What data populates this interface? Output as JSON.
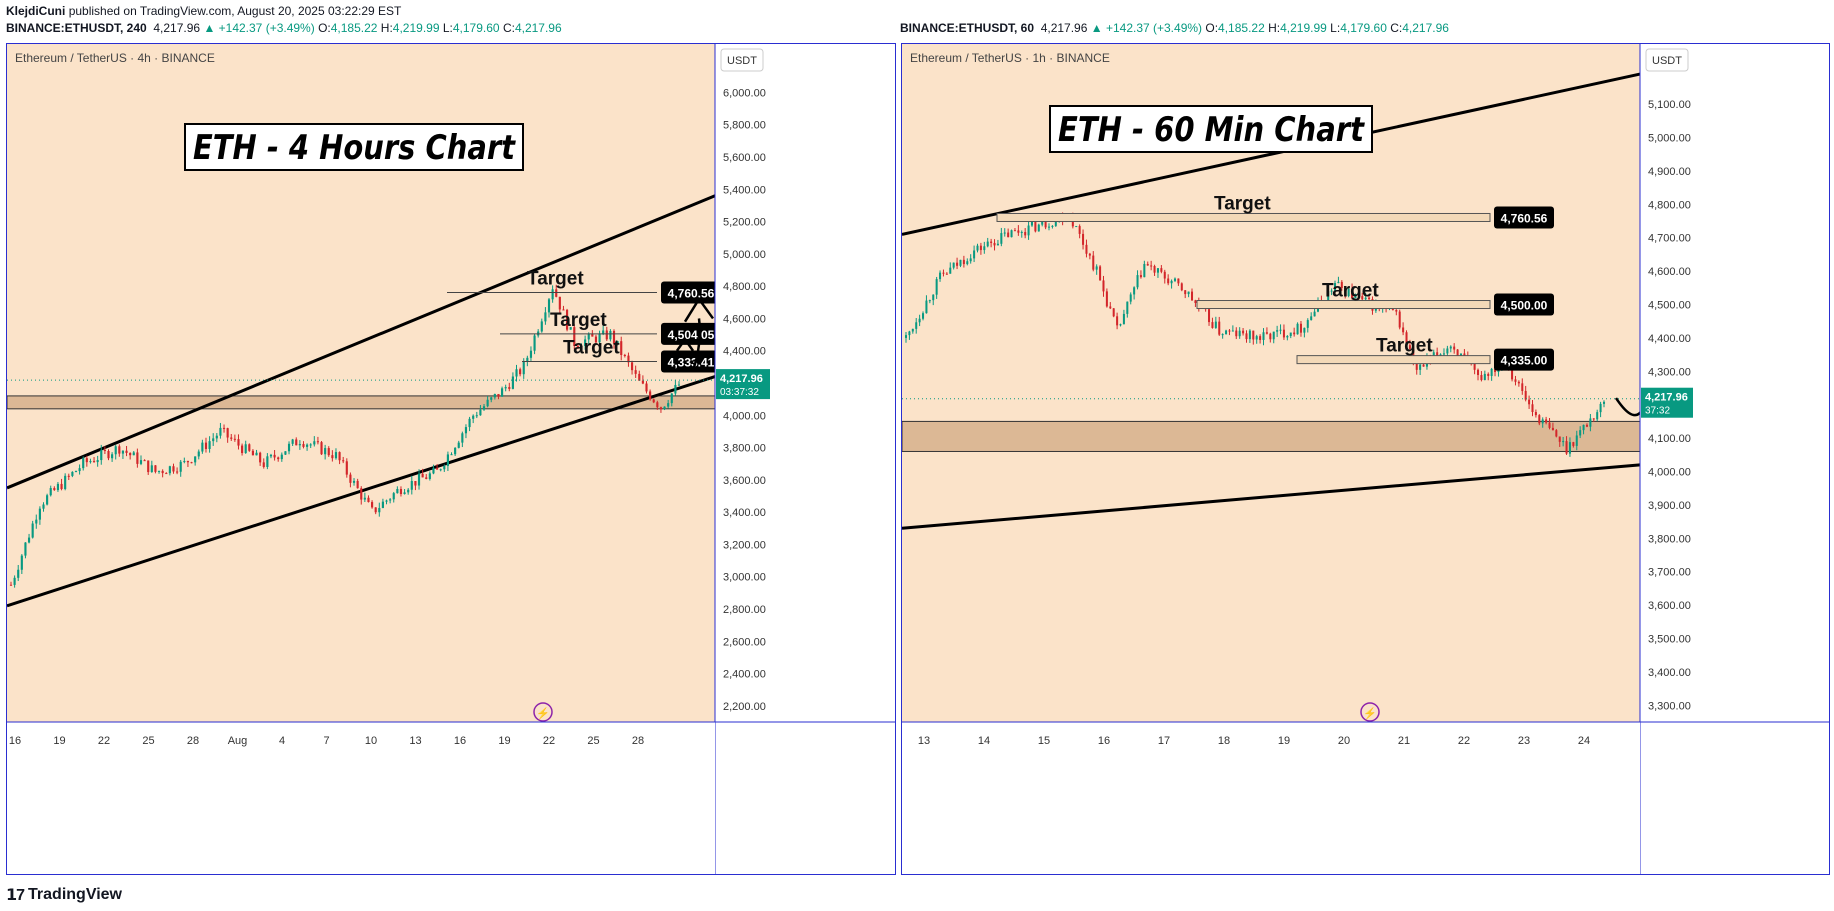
{
  "header": {
    "author": "KlejdiCuni",
    "published": "published on TradingView.com, August 20, 2025 03:22:29 EST"
  },
  "footer": {
    "brand": "TradingView"
  },
  "left_ohlc": {
    "symbol": "BINANCE:ETHUSDT, 240",
    "last": "4,217.96",
    "change": "▲ +142.37 (+3.49%)",
    "o": "4,185.22",
    "h": "4,219.99",
    "l": "4,179.60",
    "c": "4,217.96"
  },
  "right_ohlc": {
    "symbol": "BINANCE:ETHUSDT, 60",
    "last": "4,217.96",
    "change": "▲ +142.37 (+3.49%)",
    "o": "4,185.22",
    "h": "4,219.99",
    "l": "4,179.60",
    "c": "4,217.96"
  },
  "colors": {
    "background": "#fbe3c9",
    "zone": "#dcb895",
    "up": "#089981",
    "down": "#d3262a",
    "frame": "#2a2ed1"
  },
  "chart_data": [
    {
      "type": "candlestick",
      "pane_label": "Ethereum / TetherUS · 4h · BINANCE",
      "title": "ETH - 4 Hours Chart",
      "currency": "USDT",
      "ylim": [
        2100,
        6300
      ],
      "y_ticks": [
        "6,200.00",
        "6,000.00",
        "5,800.00",
        "5,600.00",
        "5,400.00",
        "5,200.00",
        "5,000.00",
        "4,800.00",
        "4,600.00",
        "4,400.00",
        "4,200.00",
        "4,000.00",
        "3,800.00",
        "3,600.00",
        "3,400.00",
        "3,200.00",
        "3,000.00",
        "2,800.00",
        "2,600.00",
        "2,400.00",
        "2,200.00"
      ],
      "x_ticks": [
        "16",
        "19",
        "22",
        "25",
        "28",
        "Aug",
        "4",
        "7",
        "10",
        "13",
        "16",
        "19",
        "22",
        "25",
        "28"
      ],
      "price_path": [
        [
          0,
          2950
        ],
        [
          8,
          3450
        ],
        [
          20,
          3700
        ],
        [
          30,
          3800
        ],
        [
          40,
          3650
        ],
        [
          48,
          3700
        ],
        [
          58,
          3900
        ],
        [
          70,
          3700
        ],
        [
          80,
          3850
        ],
        [
          90,
          3750
        ],
        [
          100,
          3400
        ],
        [
          108,
          3550
        ],
        [
          118,
          3650
        ],
        [
          128,
          4000
        ],
        [
          136,
          4150
        ],
        [
          142,
          4300
        ],
        [
          150,
          4800
        ],
        [
          156,
          4450
        ],
        [
          166,
          4500
        ],
        [
          174,
          4200
        ],
        [
          180,
          4050
        ],
        [
          186,
          4217.96
        ]
      ],
      "support_zone": [
        4040,
        4120
      ],
      "channel_upper": [
        [
          0,
          3550
        ],
        [
          220,
          5360
        ]
      ],
      "channel_lower": [
        [
          0,
          2820
        ],
        [
          238,
          4240
        ]
      ],
      "targets": [
        {
          "label": "Target",
          "value": "4,760.56",
          "price": 4760.56
        },
        {
          "label": "Target",
          "value": "4,504.05",
          "price": 4504.05
        },
        {
          "label": "Target",
          "value": "4,333.41",
          "price": 4333.41
        }
      ],
      "last_price": "4,217.96",
      "countdown": "03:37:32"
    },
    {
      "type": "candlestick",
      "pane_label": "Ethereum / TetherUS · 1h · BINANCE",
      "title": "ETH - 60 Min Chart",
      "currency": "USDT",
      "ylim": [
        3250,
        5280
      ],
      "y_ticks": [
        "5,200.00",
        "5,100.00",
        "5,000.00",
        "4,900.00",
        "4,800.00",
        "4,700.00",
        "4,600.00",
        "4,500.00",
        "4,400.00",
        "4,300.00",
        "4,200.00",
        "4,100.00",
        "4,000.00",
        "3,900.00",
        "3,800.00",
        "3,700.00",
        "3,600.00",
        "3,500.00",
        "3,400.00",
        "3,300.00"
      ],
      "x_ticks": [
        "13",
        "14",
        "15",
        "16",
        "17",
        "18",
        "19",
        "20",
        "21",
        "22",
        "23",
        "24"
      ],
      "price_path": [
        [
          0,
          4400
        ],
        [
          10,
          4580
        ],
        [
          20,
          4660
        ],
        [
          30,
          4710
        ],
        [
          40,
          4740
        ],
        [
          48,
          4770
        ],
        [
          56,
          4600
        ],
        [
          62,
          4420
        ],
        [
          70,
          4620
        ],
        [
          82,
          4540
        ],
        [
          92,
          4420
        ],
        [
          104,
          4400
        ],
        [
          116,
          4430
        ],
        [
          126,
          4560
        ],
        [
          134,
          4510
        ],
        [
          144,
          4470
        ],
        [
          150,
          4300
        ],
        [
          160,
          4380
        ],
        [
          168,
          4280
        ],
        [
          176,
          4330
        ],
        [
          184,
          4180
        ],
        [
          194,
          4070
        ],
        [
          206,
          4217.96
        ]
      ],
      "support_zone": [
        4060,
        4150
      ],
      "channel_upper": [
        [
          0,
          4710
        ],
        [
          250,
          5190
        ]
      ],
      "channel_lower": [
        [
          0,
          3830
        ],
        [
          250,
          4020
        ]
      ],
      "targets": [
        {
          "label": "Target",
          "value": "4,760.56",
          "price": 4760.56
        },
        {
          "label": "Target",
          "value": "4,500.00",
          "price": 4500
        },
        {
          "label": "Target",
          "value": "4,335.00",
          "price": 4335
        }
      ],
      "last_price": "4,217.96",
      "countdown": "37:32"
    }
  ]
}
